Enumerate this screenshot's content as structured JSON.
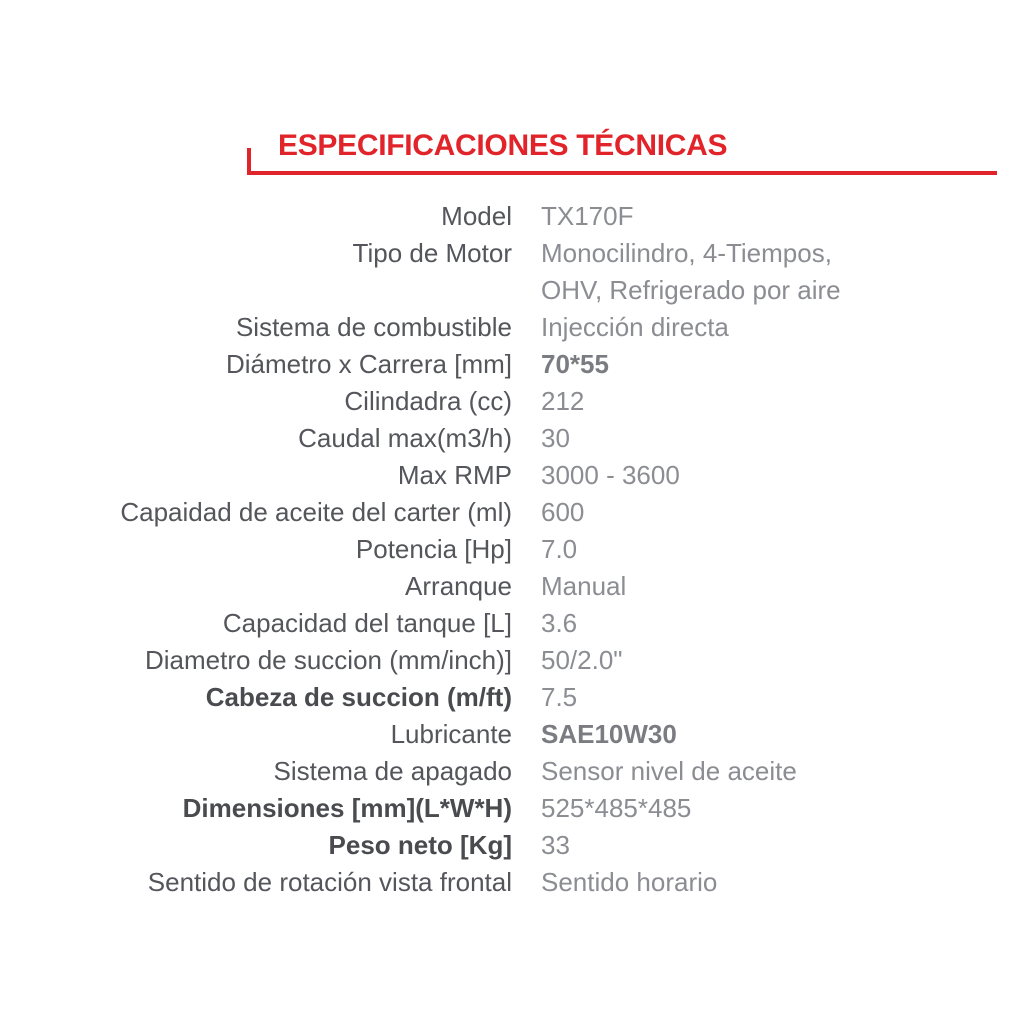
{
  "header": {
    "title": "ESPECIFICACIONES TÉCNICAS"
  },
  "colors": {
    "accent_red": "#e1232a",
    "label_text": "#54565b",
    "value_text": "#8b8d92",
    "label_bold_text": "#494b4f",
    "value_bold_text": "#7a7c81"
  },
  "specs": {
    "rows": [
      {
        "label": "Model",
        "value": "TX170F",
        "label_bold": false,
        "value_bold": false
      },
      {
        "label": "Tipo de Motor",
        "value": "Monocilindro, 4-Tiempos,\nOHV, Refrigerado por aire",
        "label_bold": false,
        "value_bold": false
      },
      {
        "label": "Sistema de combustible",
        "value": "Injección directa",
        "label_bold": false,
        "value_bold": false
      },
      {
        "label": "Diámetro x Carrera [mm]",
        "value": "70*55",
        "label_bold": false,
        "value_bold": true
      },
      {
        "label": "Cilindadra (cc)",
        "value": "212",
        "label_bold": false,
        "value_bold": false
      },
      {
        "label": "Caudal max(m3/h)",
        "value": "30",
        "label_bold": false,
        "value_bold": false
      },
      {
        "label": "Max RMP",
        "value": "3000 - 3600",
        "label_bold": false,
        "value_bold": false
      },
      {
        "label": "Capaidad de aceite del carter (ml)",
        "value": "600",
        "label_bold": false,
        "value_bold": false
      },
      {
        "label": "Potencia [Hp]",
        "value": "7.0",
        "label_bold": false,
        "value_bold": false
      },
      {
        "label": "Arranque",
        "value": "Manual",
        "label_bold": false,
        "value_bold": false
      },
      {
        "label": "Capacidad del tanque [L]",
        "value": "3.6",
        "label_bold": false,
        "value_bold": false
      },
      {
        "label": "Diametro de succion (mm/inch)]",
        "value": "50/2.0\"",
        "label_bold": false,
        "value_bold": false
      },
      {
        "label": "Cabeza de succion (m/ft)",
        "value": "7.5",
        "label_bold": true,
        "value_bold": false
      },
      {
        "label": "Lubricante",
        "value": "SAE10W30",
        "label_bold": false,
        "value_bold": true
      },
      {
        "label": "Sistema de apagado",
        "value": "Sensor nivel de aceite",
        "label_bold": false,
        "value_bold": false
      },
      {
        "label": "Dimensiones [mm](L*W*H)",
        "value": "525*485*485",
        "label_bold": true,
        "value_bold": false
      },
      {
        "label": "Peso neto [Kg]",
        "value": "33",
        "label_bold": true,
        "value_bold": false
      },
      {
        "label": "Sentido de rotación vista frontal",
        "value": "Sentido horario",
        "label_bold": false,
        "value_bold": false
      }
    ]
  }
}
